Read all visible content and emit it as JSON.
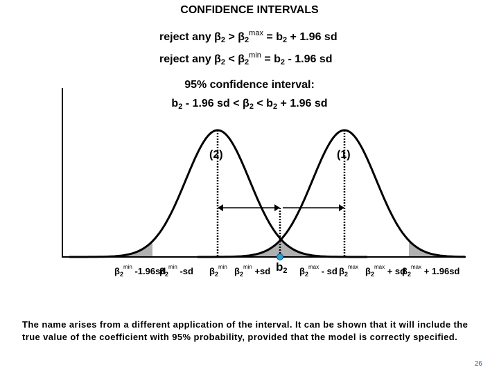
{
  "title": "CONFIDENCE INTERVALS",
  "rules": [
    {
      "prefix": "reject any β",
      "sub1": "2",
      "op": " > β",
      "sub2": "2",
      "sup": "max",
      "rest": " = b",
      "sub3": "2",
      "tail": " + 1.96 sd"
    },
    {
      "prefix": "reject any β",
      "sub1": "2",
      "op": " < β",
      "sub2": "2",
      "sup": "min",
      "rest": " = b",
      "sub3": "2",
      "tail": " - 1.96 sd"
    }
  ],
  "interval": {
    "heading": "95% confidence interval:",
    "p1": "b",
    "s1": "2",
    "p2": " - 1.96 sd < β",
    "s2": "2",
    "p3": " < b",
    "s3": "2",
    "p4": " + 1.96 sd"
  },
  "curve_labels": {
    "left": "(2)",
    "right": "(1)"
  },
  "axis_ticks": [
    {
      "base": "β",
      "sub": "2",
      "sup": "min",
      "suffix": " -1.96sd"
    },
    {
      "base": "β",
      "sub": "2",
      "sup": "min",
      "suffix": " -sd"
    },
    {
      "base": "β",
      "sub": "2",
      "sup": "min",
      "suffix": ""
    },
    {
      "base": "β",
      "sub": "2",
      "sup": "min",
      "suffix": " +sd"
    },
    {
      "base": "b",
      "sub": "2",
      "sup": "",
      "suffix": ""
    },
    {
      "base": "β",
      "sub": "2",
      "sup": "max",
      "suffix": " - sd"
    },
    {
      "base": "β",
      "sub": "2",
      "sup": "max",
      "suffix": ""
    },
    {
      "base": "β",
      "sub": "2",
      "sup": "max",
      "suffix": " + sd"
    },
    {
      "base": "β",
      "sub": "2",
      "sup": "max",
      "suffix": " + 1.96sd"
    }
  ],
  "caption": "The name arises from a different application of the interval. It can be shown that it will include the true value of the coefficient with 95% probability, provided that the model is correctly specified.",
  "page_number": "26",
  "colors": {
    "curve": "#000000",
    "shade": "#b0b0b0",
    "marker": "#2aa3d8",
    "page_number": "#1f5fa8"
  }
}
